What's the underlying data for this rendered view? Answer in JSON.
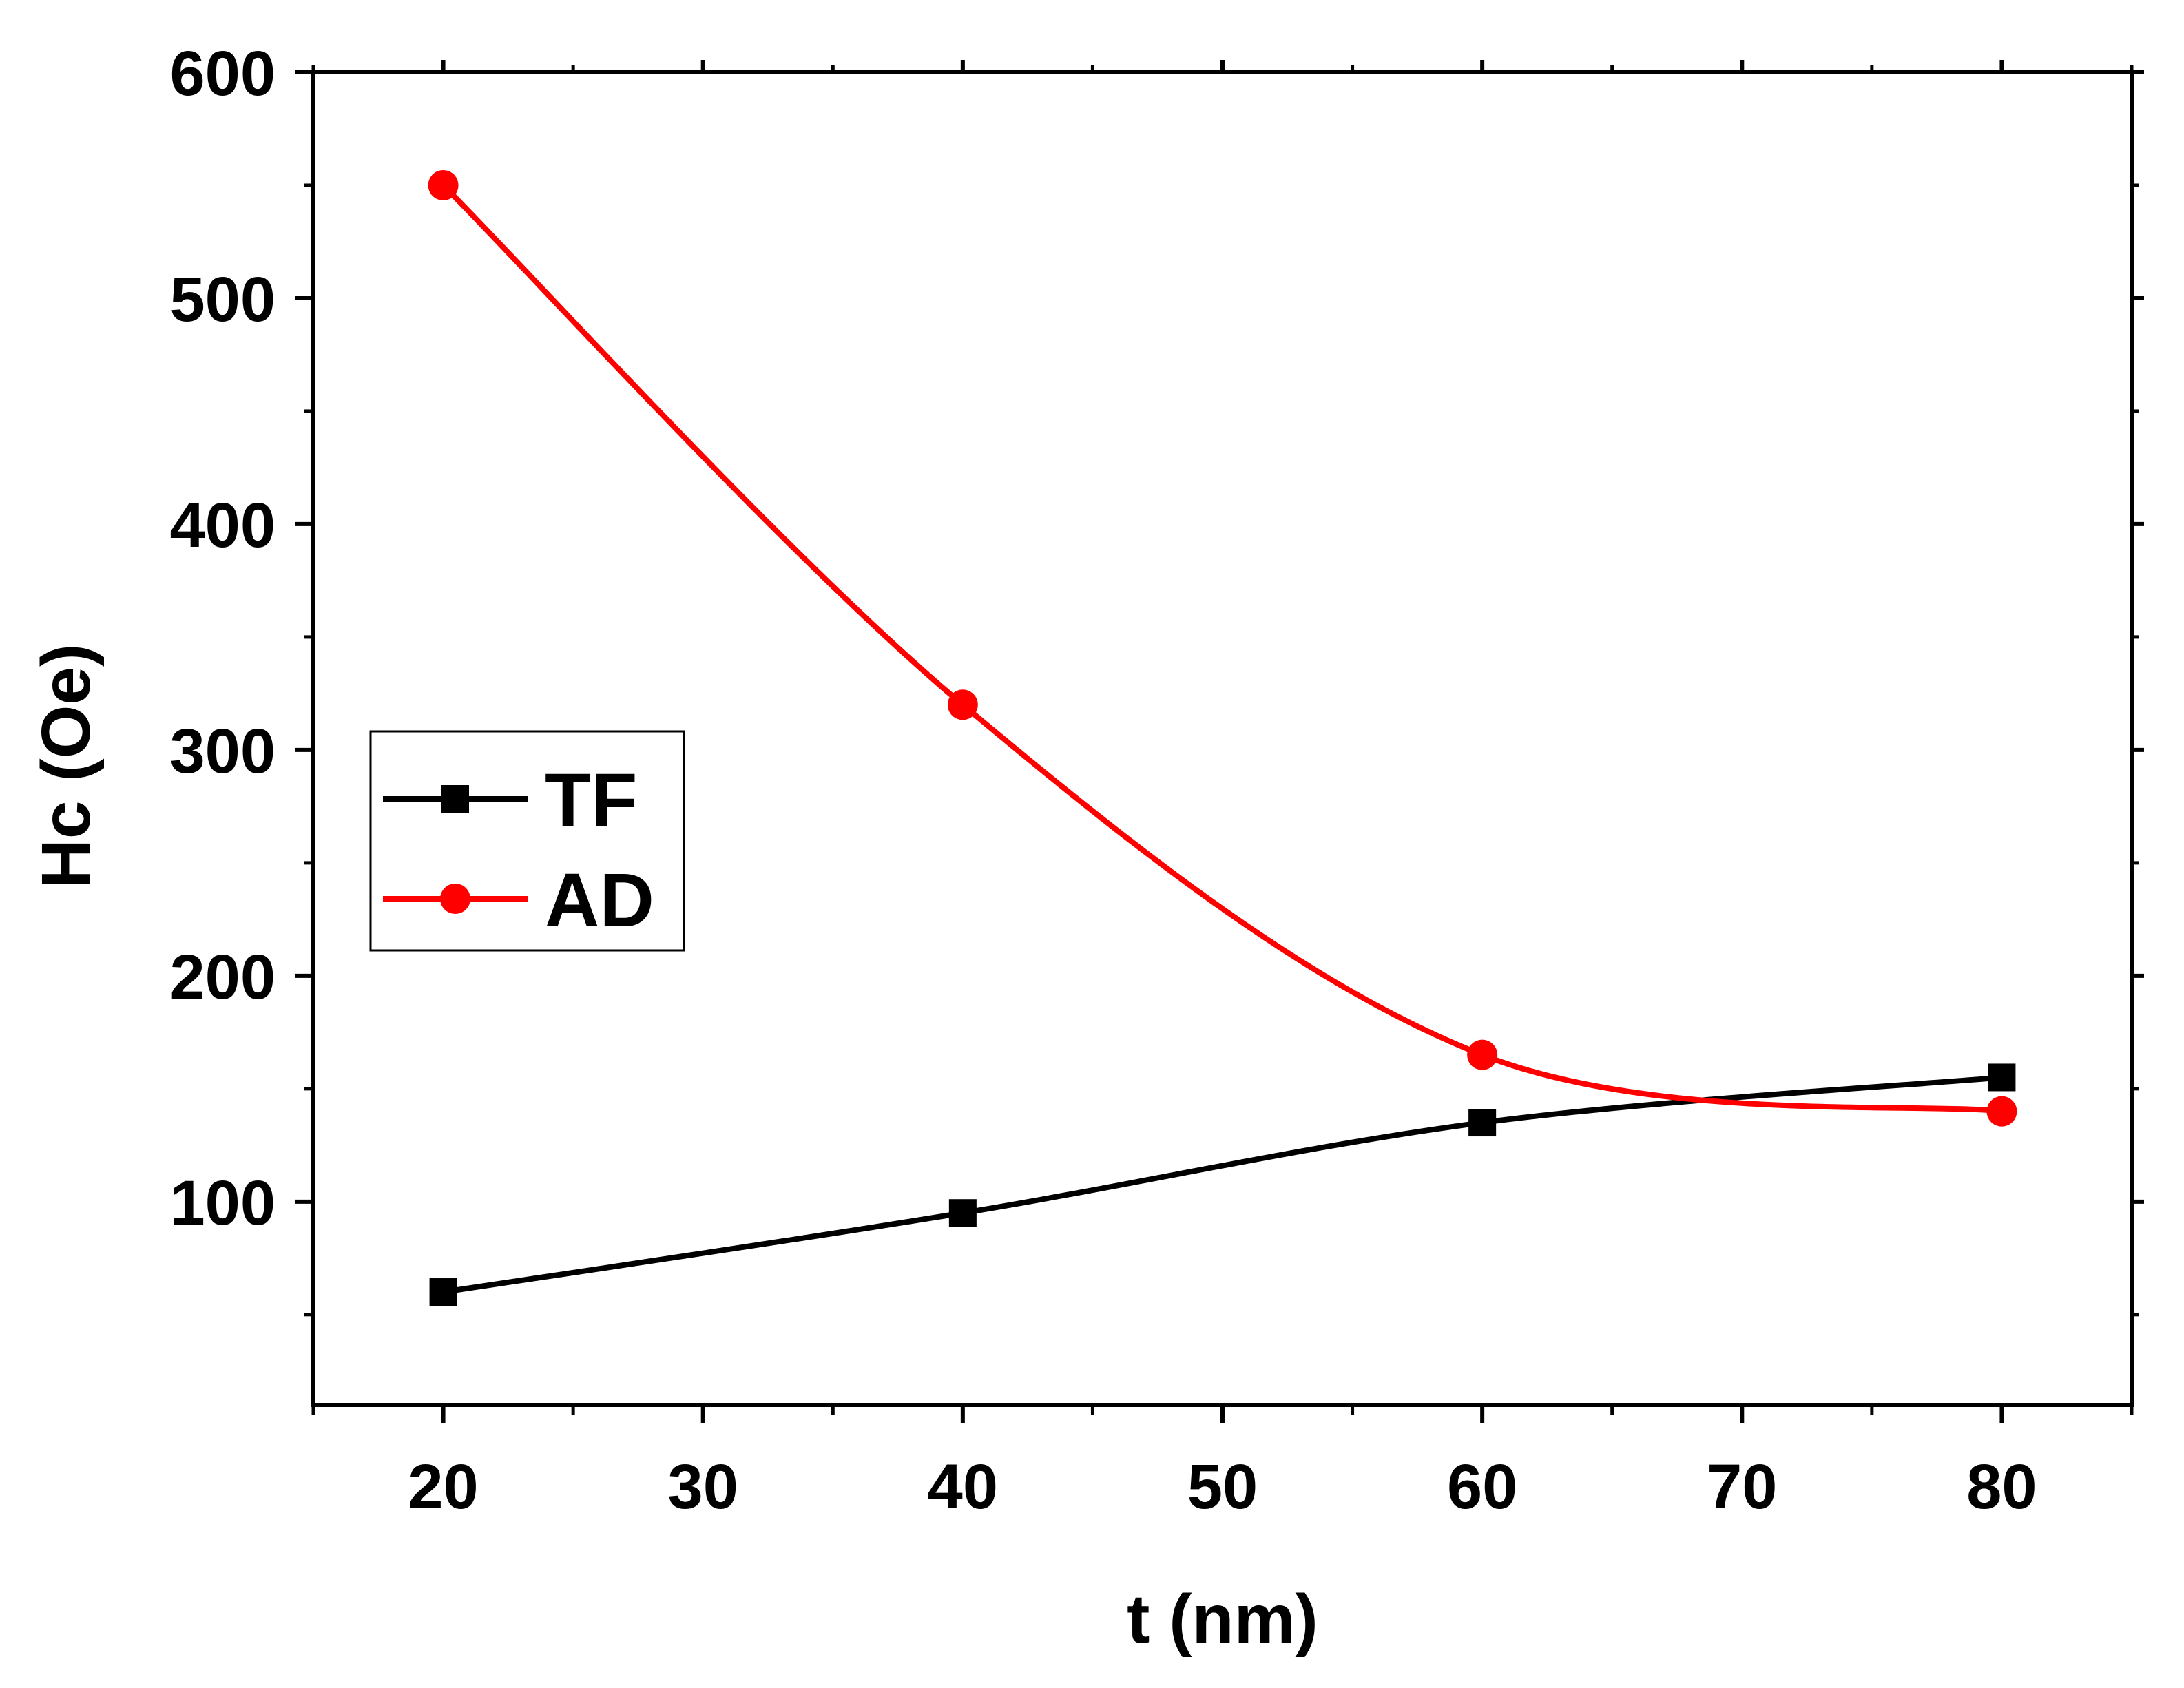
{
  "chart_data": {
    "type": "line",
    "title": "",
    "xlabel": "t (nm)",
    "ylabel": "Hc (Oe)",
    "xlim": [
      15,
      85
    ],
    "ylim": [
      10,
      600
    ],
    "x_ticks": [
      20,
      30,
      40,
      50,
      60,
      70,
      80
    ],
    "y_ticks": [
      100,
      200,
      300,
      400,
      500,
      600
    ],
    "x": [
      20,
      40,
      60,
      80
    ],
    "series": [
      {
        "name": "TF",
        "values": [
          60,
          95,
          135,
          155
        ],
        "color": "#000000",
        "marker": "square"
      },
      {
        "name": "AD",
        "values": [
          550,
          320,
          165,
          140
        ],
        "color": "#ff0000",
        "marker": "circle"
      }
    ],
    "grid": false,
    "legend_position": "middle-left"
  }
}
